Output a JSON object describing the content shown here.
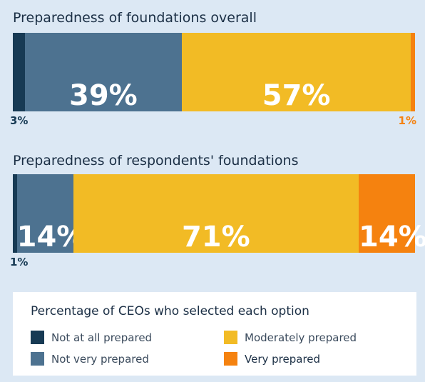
{
  "chart_data": [
    {
      "type": "bar",
      "orientation": "horizontal",
      "stacked": true,
      "title": "Preparedness of foundations overall",
      "categories": [
        "Not at all prepared",
        "Not very prepared",
        "Moderately prepared",
        "Very prepared"
      ],
      "values": [
        3,
        39,
        57,
        1
      ],
      "labels": [
        "3%",
        "39%",
        "57%",
        "1%"
      ],
      "xlim": [
        0,
        100
      ]
    },
    {
      "type": "bar",
      "orientation": "horizontal",
      "stacked": true,
      "title": "Preparedness of respondents' foundations",
      "categories": [
        "Not at all prepared",
        "Not very prepared",
        "Moderately prepared",
        "Very prepared"
      ],
      "values": [
        1,
        14,
        71,
        14
      ],
      "labels": [
        "1%",
        "14%",
        "71%",
        "14%"
      ],
      "xlim": [
        0,
        100
      ]
    }
  ],
  "legend": {
    "title": "Percentage of CEOs who selected each option",
    "placement": "bottom",
    "items": [
      {
        "label": "Not at all prepared",
        "color": "#173a54"
      },
      {
        "label": "Not very prepared",
        "color": "#4d7290"
      },
      {
        "label": "Moderately prepared",
        "color": "#f2bb25"
      },
      {
        "label": "Very prepared",
        "color": "#f5820f"
      }
    ]
  }
}
